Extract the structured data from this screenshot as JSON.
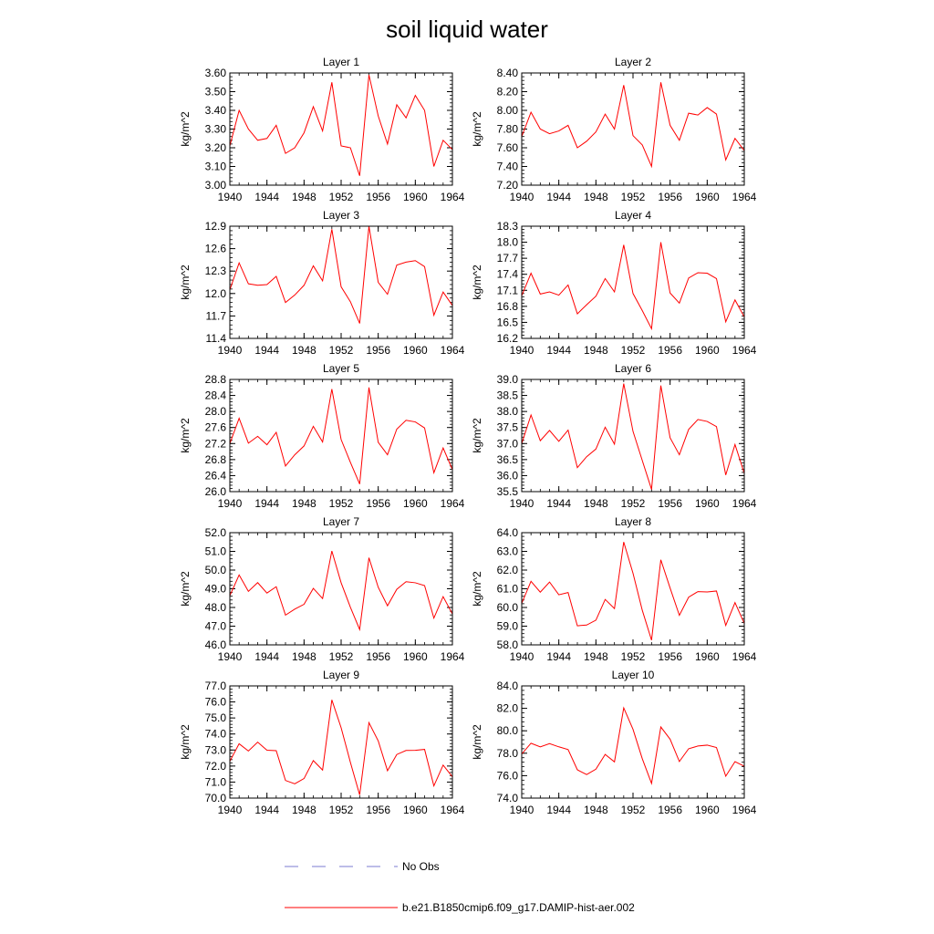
{
  "figure": {
    "title": "soil liquid water"
  },
  "legend": {
    "obs_label": "No Obs",
    "obs_color": "#7b7bd0",
    "model_label": "b.e21.B1850cmip6.f09_g17.DAMIP-hist-aer.002",
    "model_color": "#ff0000"
  },
  "chart_data": [
    {
      "type": "line",
      "title": "Layer 1",
      "ylabel": "kg/m^2",
      "xlim": [
        1940,
        1964
      ],
      "xticks": [
        "1940",
        "1944",
        "1948",
        "1952",
        "1956",
        "1960",
        "1964"
      ],
      "ylim": [
        3.0,
        3.6
      ],
      "yticks": [
        "3.00",
        "3.10",
        "3.20",
        "3.30",
        "3.40",
        "3.50",
        "3.60"
      ],
      "series": [
        {
          "color": "#ff0000",
          "x": [
            1940,
            1941,
            1942,
            1943,
            1944,
            1945,
            1946,
            1947,
            1948,
            1949,
            1950,
            1951,
            1952,
            1953,
            1954,
            1955,
            1956,
            1957,
            1958,
            1959,
            1960,
            1961,
            1962,
            1963,
            1964
          ],
          "y": [
            3.21,
            3.4,
            3.3,
            3.24,
            3.25,
            3.32,
            3.17,
            3.2,
            3.28,
            3.42,
            3.29,
            3.55,
            3.21,
            3.2,
            3.05,
            3.59,
            3.37,
            3.22,
            3.43,
            3.36,
            3.48,
            3.4,
            3.1,
            3.24,
            3.19
          ]
        }
      ]
    },
    {
      "type": "line",
      "title": "Layer 2",
      "ylabel": "kg/m^2",
      "xlim": [
        1940,
        1964
      ],
      "xticks": [
        "1940",
        "1944",
        "1948",
        "1952",
        "1956",
        "1960",
        "1964"
      ],
      "ylim": [
        7.2,
        8.4
      ],
      "yticks": [
        "7.20",
        "7.40",
        "7.60",
        "7.80",
        "8.00",
        "8.20",
        "8.40"
      ],
      "series": [
        {
          "color": "#ff0000",
          "x": [
            1940,
            1941,
            1942,
            1943,
            1944,
            1945,
            1946,
            1947,
            1948,
            1949,
            1950,
            1951,
            1952,
            1953,
            1954,
            1955,
            1956,
            1957,
            1958,
            1959,
            1960,
            1961,
            1962,
            1963,
            1964
          ],
          "y": [
            7.72,
            7.98,
            7.8,
            7.75,
            7.78,
            7.84,
            7.6,
            7.67,
            7.77,
            7.96,
            7.8,
            8.27,
            7.73,
            7.63,
            7.4,
            8.3,
            7.84,
            7.68,
            7.97,
            7.95,
            8.03,
            7.96,
            7.47,
            7.7,
            7.57
          ]
        }
      ]
    },
    {
      "type": "line",
      "title": "Layer 3",
      "ylabel": "kg/m^2",
      "xlim": [
        1940,
        1964
      ],
      "xticks": [
        "1940",
        "1944",
        "1948",
        "1952",
        "1956",
        "1960",
        "1964"
      ],
      "ylim": [
        11.4,
        12.9
      ],
      "yticks": [
        "11.4",
        "11.7",
        "12.0",
        "12.3",
        "12.6",
        "12.9"
      ],
      "series": [
        {
          "color": "#ff0000",
          "x": [
            1940,
            1941,
            1942,
            1943,
            1944,
            1945,
            1946,
            1947,
            1948,
            1949,
            1950,
            1951,
            1952,
            1953,
            1954,
            1955,
            1956,
            1957,
            1958,
            1959,
            1960,
            1961,
            1962,
            1963,
            1964
          ],
          "y": [
            12.05,
            12.41,
            12.13,
            12.11,
            12.12,
            12.23,
            11.88,
            11.98,
            12.11,
            12.37,
            12.17,
            12.86,
            12.09,
            11.89,
            11.6,
            12.9,
            12.15,
            11.99,
            12.38,
            12.42,
            12.44,
            12.36,
            11.71,
            12.02,
            11.84
          ]
        }
      ]
    },
    {
      "type": "line",
      "title": "Layer 4",
      "ylabel": "kg/m^2",
      "xlim": [
        1940,
        1964
      ],
      "xticks": [
        "1940",
        "1944",
        "1948",
        "1952",
        "1956",
        "1960",
        "1964"
      ],
      "ylim": [
        16.2,
        18.3
      ],
      "yticks": [
        "16.2",
        "16.5",
        "16.8",
        "17.1",
        "17.4",
        "17.7",
        "18.0",
        "18.3"
      ],
      "series": [
        {
          "color": "#ff0000",
          "x": [
            1940,
            1941,
            1942,
            1943,
            1944,
            1945,
            1946,
            1947,
            1948,
            1949,
            1950,
            1951,
            1952,
            1953,
            1954,
            1955,
            1956,
            1957,
            1958,
            1959,
            1960,
            1961,
            1962,
            1963,
            1964
          ],
          "y": [
            17.0,
            17.42,
            17.03,
            17.07,
            17.01,
            17.2,
            16.66,
            16.83,
            16.99,
            17.32,
            17.07,
            17.95,
            17.04,
            16.72,
            16.38,
            18.0,
            17.05,
            16.86,
            17.33,
            17.43,
            17.42,
            17.32,
            16.51,
            16.92,
            16.6
          ]
        }
      ]
    },
    {
      "type": "line",
      "title": "Layer 5",
      "ylabel": "kg/m^2",
      "xlim": [
        1940,
        1964
      ],
      "xticks": [
        "1940",
        "1944",
        "1948",
        "1952",
        "1956",
        "1960",
        "1964"
      ],
      "ylim": [
        26.0,
        28.8
      ],
      "yticks": [
        "26.0",
        "26.4",
        "26.8",
        "27.2",
        "27.6",
        "28.0",
        "28.4",
        "28.8"
      ],
      "series": [
        {
          "color": "#ff0000",
          "x": [
            1940,
            1941,
            1942,
            1943,
            1944,
            1945,
            1946,
            1947,
            1948,
            1949,
            1950,
            1951,
            1952,
            1953,
            1954,
            1955,
            1956,
            1957,
            1958,
            1959,
            1960,
            1961,
            1962,
            1963,
            1964
          ],
          "y": [
            27.2,
            27.83,
            27.21,
            27.38,
            27.17,
            27.48,
            26.64,
            26.92,
            27.14,
            27.63,
            27.24,
            28.56,
            27.3,
            26.73,
            26.19,
            28.6,
            27.23,
            26.92,
            27.56,
            27.78,
            27.74,
            27.59,
            26.47,
            27.09,
            26.55
          ]
        }
      ]
    },
    {
      "type": "line",
      "title": "Layer 6",
      "ylabel": "kg/m^2",
      "xlim": [
        1940,
        1964
      ],
      "xticks": [
        "1940",
        "1944",
        "1948",
        "1952",
        "1956",
        "1960",
        "1964"
      ],
      "ylim": [
        35.5,
        39.0
      ],
      "yticks": [
        "35.5",
        "36.0",
        "36.5",
        "37.0",
        "37.5",
        "38.0",
        "38.5",
        "39.0"
      ],
      "series": [
        {
          "color": "#ff0000",
          "x": [
            1940,
            1941,
            1942,
            1943,
            1944,
            1945,
            1946,
            1947,
            1948,
            1949,
            1950,
            1951,
            1952,
            1953,
            1954,
            1955,
            1956,
            1957,
            1958,
            1959,
            1960,
            1961,
            1962,
            1963,
            1964
          ],
          "y": [
            37.0,
            37.89,
            37.09,
            37.41,
            37.07,
            37.42,
            36.25,
            36.59,
            36.83,
            37.51,
            36.98,
            38.87,
            37.38,
            36.47,
            35.57,
            38.81,
            37.18,
            36.65,
            37.44,
            37.75,
            37.69,
            37.53,
            36.02,
            36.97,
            36.07
          ]
        }
      ]
    },
    {
      "type": "line",
      "title": "Layer 7",
      "ylabel": "kg/m^2",
      "xlim": [
        1940,
        1964
      ],
      "xticks": [
        "1940",
        "1944",
        "1948",
        "1952",
        "1956",
        "1960",
        "1964"
      ],
      "ylim": [
        46.0,
        52.0
      ],
      "yticks": [
        "46.0",
        "47.0",
        "48.0",
        "49.0",
        "50.0",
        "51.0",
        "52.0"
      ],
      "series": [
        {
          "color": "#ff0000",
          "x": [
            1940,
            1941,
            1942,
            1943,
            1944,
            1945,
            1946,
            1947,
            1948,
            1949,
            1950,
            1951,
            1952,
            1953,
            1954,
            1955,
            1956,
            1957,
            1958,
            1959,
            1960,
            1961,
            1962,
            1963,
            1964
          ],
          "y": [
            48.63,
            49.74,
            48.86,
            49.33,
            48.77,
            49.11,
            47.59,
            47.91,
            48.17,
            49.02,
            48.48,
            51.02,
            49.32,
            48.01,
            46.82,
            50.66,
            49.08,
            48.09,
            48.97,
            49.38,
            49.32,
            49.17,
            47.43,
            48.58,
            47.65
          ]
        }
      ]
    },
    {
      "type": "line",
      "title": "Layer 8",
      "ylabel": "kg/m^2",
      "xlim": [
        1940,
        1964
      ],
      "xticks": [
        "1940",
        "1944",
        "1948",
        "1952",
        "1956",
        "1960",
        "1964"
      ],
      "ylim": [
        58.0,
        64.0
      ],
      "yticks": [
        "58.0",
        "59.0",
        "60.0",
        "61.0",
        "62.0",
        "63.0",
        "64.0"
      ],
      "series": [
        {
          "color": "#ff0000",
          "x": [
            1940,
            1941,
            1942,
            1943,
            1944,
            1945,
            1946,
            1947,
            1948,
            1949,
            1950,
            1951,
            1952,
            1953,
            1954,
            1955,
            1956,
            1957,
            1958,
            1959,
            1960,
            1961,
            1962,
            1963,
            1964
          ],
          "y": [
            60.22,
            61.4,
            60.82,
            61.36,
            60.68,
            60.8,
            59.02,
            59.06,
            59.32,
            60.43,
            59.94,
            63.5,
            61.83,
            59.85,
            58.25,
            62.55,
            61.04,
            59.58,
            60.55,
            60.85,
            60.83,
            60.88,
            59.04,
            60.26,
            59.15
          ]
        }
      ]
    },
    {
      "type": "line",
      "title": "Layer 9",
      "ylabel": "kg/m^2",
      "xlim": [
        1940,
        1964
      ],
      "xticks": [
        "1940",
        "1944",
        "1948",
        "1952",
        "1956",
        "1960",
        "1964"
      ],
      "ylim": [
        70.0,
        77.0
      ],
      "yticks": [
        "70.0",
        "71.0",
        "72.0",
        "73.0",
        "74.0",
        "75.0",
        "76.0",
        "77.0"
      ],
      "series": [
        {
          "color": "#ff0000",
          "x": [
            1940,
            1941,
            1942,
            1943,
            1944,
            1945,
            1946,
            1947,
            1948,
            1949,
            1950,
            1951,
            1952,
            1953,
            1954,
            1955,
            1956,
            1957,
            1958,
            1959,
            1960,
            1961,
            1962,
            1963,
            1964
          ],
          "y": [
            72.3,
            73.39,
            72.94,
            73.49,
            72.99,
            72.96,
            71.1,
            70.89,
            71.22,
            72.34,
            71.75,
            76.13,
            74.39,
            72.23,
            70.2,
            74.71,
            73.57,
            71.71,
            72.72,
            72.97,
            72.98,
            73.04,
            70.76,
            72.06,
            71.33
          ]
        }
      ]
    },
    {
      "type": "line",
      "title": "Layer 10",
      "ylabel": "kg/m^2",
      "xlim": [
        1940,
        1964
      ],
      "xticks": [
        "1940",
        "1944",
        "1948",
        "1952",
        "1956",
        "1960",
        "1964"
      ],
      "ylim": [
        74.0,
        84.0
      ],
      "yticks": [
        "74.0",
        "76.0",
        "78.0",
        "80.0",
        "82.0",
        "84.0"
      ],
      "series": [
        {
          "color": "#ff0000",
          "x": [
            1940,
            1941,
            1942,
            1943,
            1944,
            1945,
            1946,
            1947,
            1948,
            1949,
            1950,
            1951,
            1952,
            1953,
            1954,
            1955,
            1956,
            1957,
            1958,
            1959,
            1960,
            1961,
            1962,
            1963,
            1964
          ],
          "y": [
            77.93,
            78.89,
            78.57,
            78.86,
            78.57,
            78.33,
            76.52,
            76.1,
            76.58,
            77.89,
            77.23,
            82.04,
            80.13,
            77.51,
            75.31,
            80.34,
            79.25,
            77.26,
            78.4,
            78.64,
            78.72,
            78.51,
            75.95,
            77.25,
            76.84
          ]
        }
      ]
    }
  ]
}
